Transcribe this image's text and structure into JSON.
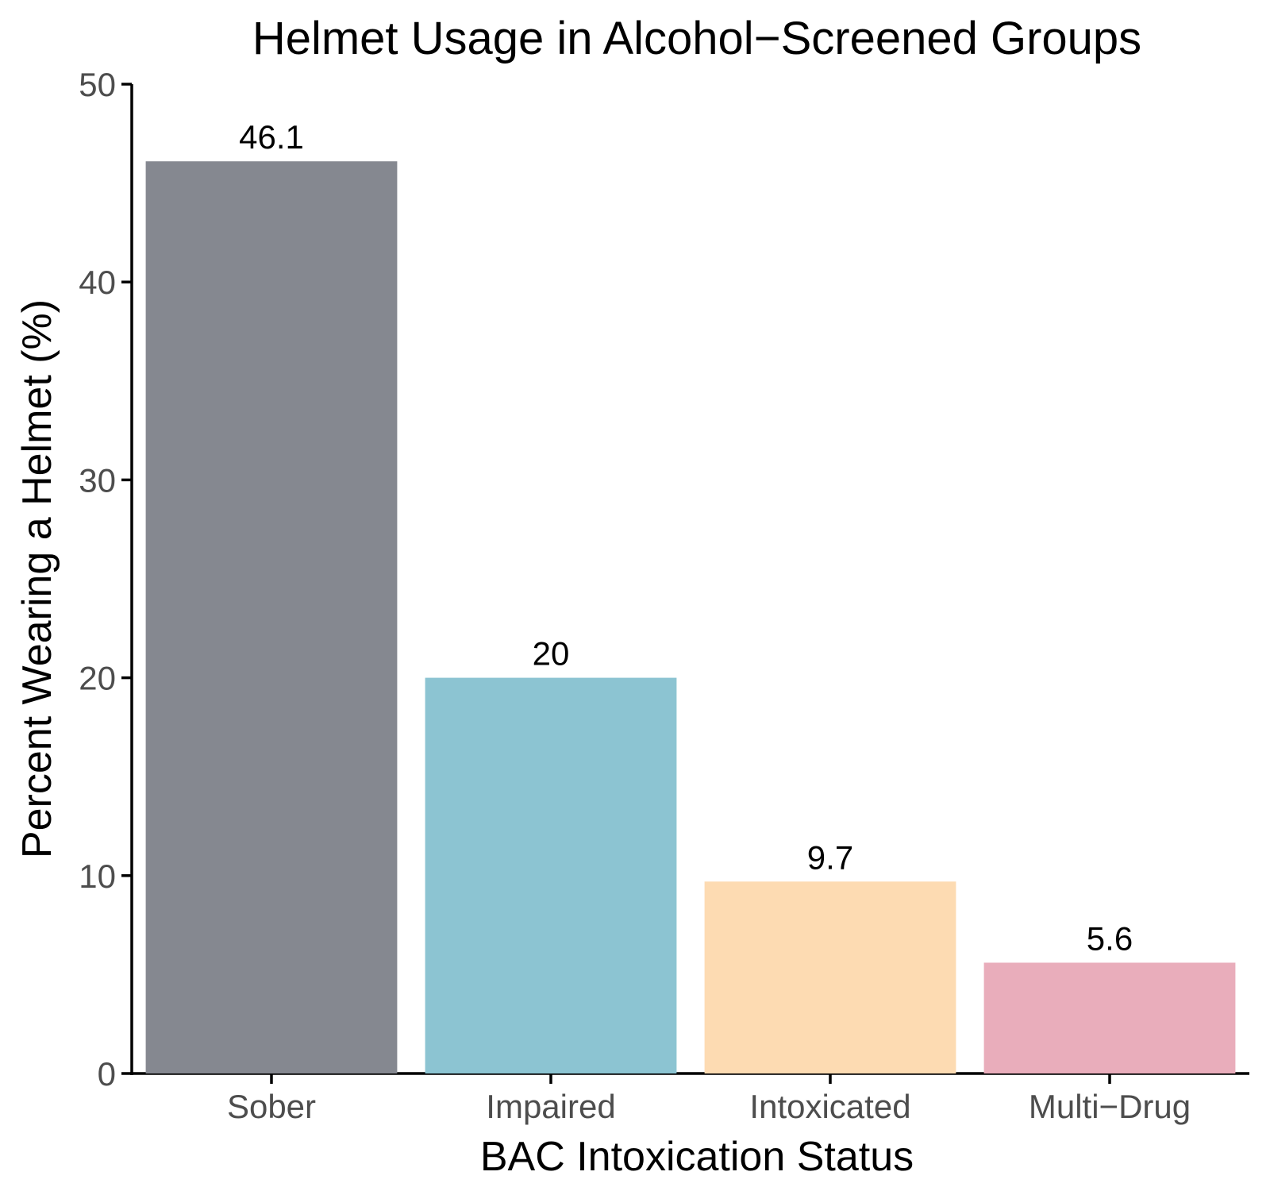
{
  "chart_data": {
    "type": "bar",
    "title": "Helmet Usage in Alcohol−Screened Groups",
    "xlabel": "BAC Intoxication Status",
    "ylabel": "Percent Wearing a Helmet (%)",
    "categories": [
      "Sober",
      "Impaired",
      "Intoxicated",
      "Multi−Drug"
    ],
    "values": [
      46.1,
      20,
      9.7,
      5.6
    ],
    "value_labels": [
      "46.1",
      "20",
      "9.7",
      "5.6"
    ],
    "colors": [
      "#858890",
      "#8cc4d2",
      "#fddbb2",
      "#e9adbb"
    ],
    "ylim": [
      0,
      50
    ],
    "yticks": [
      0,
      10,
      20,
      30,
      40,
      50
    ],
    "ytick_labels": [
      "0",
      "10",
      "20",
      "30",
      "40",
      "50"
    ],
    "grid": false,
    "legend": "none"
  }
}
